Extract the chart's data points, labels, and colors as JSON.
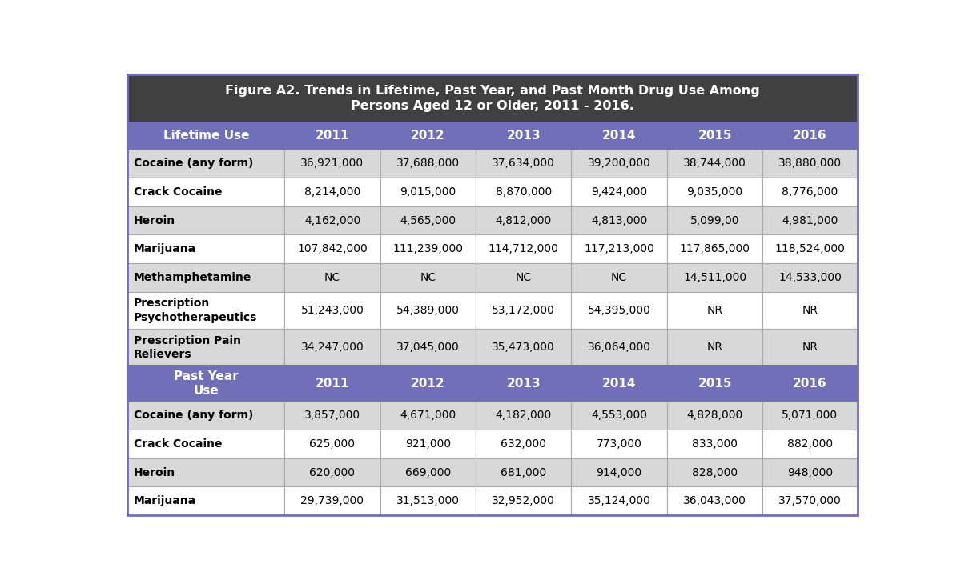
{
  "title": "Figure A2. Trends in Lifetime, Past Year, and Past Month Drug Use Among\nPersons Aged 12 or Older, 2011 - 2016.",
  "title_bg": "#404040",
  "title_color": "#ffffff",
  "header_bg": "#7070b8",
  "header_color": "#ffffff",
  "row_bg_light": "#d8d8d8",
  "row_bg_white": "#ffffff",
  "section_header_bg": "#7070b8",
  "section_header_color": "#ffffff",
  "years": [
    "2011",
    "2012",
    "2013",
    "2014",
    "2015",
    "2016"
  ],
  "col0_header": "Lifetime Use",
  "rows_lifetime": [
    [
      "Cocaine (any form)",
      "36,921,000",
      "37,688,000",
      "37,634,000",
      "39,200,000",
      "38,744,000",
      "38,880,000"
    ],
    [
      "Crack Cocaine",
      "8,214,000",
      "9,015,000",
      "8,870,000",
      "9,424,000",
      "9,035,000",
      "8,776,000"
    ],
    [
      "Heroin",
      "4,162,000",
      "4,565,000",
      "4,812,000",
      "4,813,000",
      "5,099,00",
      "4,981,000"
    ],
    [
      "Marijuana",
      "107,842,000",
      "111,239,000",
      "114,712,000",
      "117,213,000",
      "117,865,000",
      "118,524,000"
    ],
    [
      "Methamphetamine",
      "NC",
      "NC",
      "NC",
      "NC",
      "14,511,000",
      "14,533,000"
    ],
    [
      "Prescription\nPsychotherapeutics",
      "51,243,000",
      "54,389,000",
      "53,172,000",
      "54,395,000",
      "NR",
      "NR"
    ],
    [
      "Prescription Pain\nRelievers",
      "34,247,000",
      "37,045,000",
      "35,473,000",
      "36,064,000",
      "NR",
      "NR"
    ]
  ],
  "col0_header2": "Past Year\nUse",
  "rows_pastyear": [
    [
      "Cocaine (any form)",
      "3,857,000",
      "4,671,000",
      "4,182,000",
      "4,553,000",
      "4,828,000",
      "5,071,000"
    ],
    [
      "Crack Cocaine",
      "625,000",
      "921,000",
      "632,000",
      "773,000",
      "833,000",
      "882,000"
    ],
    [
      "Heroin",
      "620,000",
      "669,000",
      "681,000",
      "914,000",
      "828,000",
      "948,000"
    ],
    [
      "Marijuana",
      "29,739,000",
      "31,513,000",
      "32,952,000",
      "35,124,000",
      "36,043,000",
      "37,570,000"
    ]
  ],
  "bg_color": "#ffffff",
  "border_color": "#7070b8",
  "inner_border_color": "#aaaaaa"
}
